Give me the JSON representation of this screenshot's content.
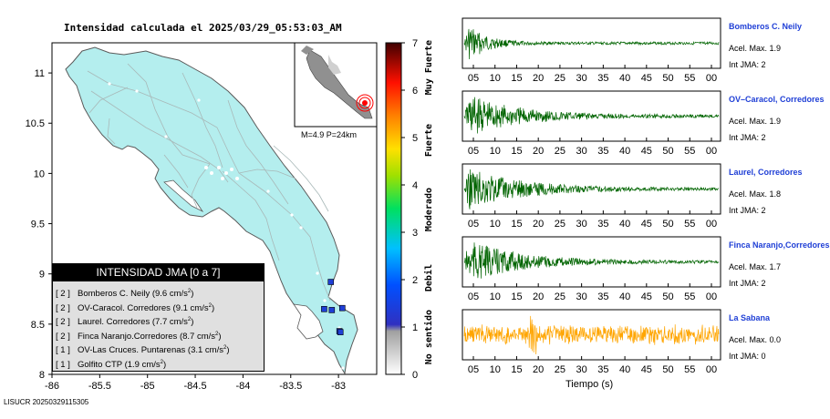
{
  "map": {
    "title": "Intensidad calculada el 2025/03/29_05:53:03_AM",
    "inset_label": "M=4.9 P=24km",
    "footer": "LISUCR 20250329115305",
    "legend_title": "INTENSIDAD JMA [0 a 7]",
    "legend_unit_text": "cm/s",
    "legend_unit_power": "2",
    "stations": [
      {
        "level": "[ 2 ]",
        "name": "Bomberos C. Neily",
        "value": "9.6"
      },
      {
        "level": "[ 2 ]",
        "name": "OV-Caracol. Corredores",
        "value": "9.1"
      },
      {
        "level": "[ 2 ]",
        "name": "Laurel. Corredores",
        "value": "7.7"
      },
      {
        "level": "[ 2 ]",
        "name": "Finca Naranjo.Corredores",
        "value": "8.7"
      },
      {
        "level": "[ 1 ]",
        "name": "OV-Las Cruces. Puntarenas",
        "value": "3.1"
      },
      {
        "level": "[ 1 ]",
        "name": "Golfito CTP",
        "value": "1.9"
      }
    ],
    "x_ticks": [
      "-86",
      "-85.5",
      "-85",
      "-84.5",
      "-84",
      "-83.5",
      "-83"
    ],
    "y_ticks": [
      "11",
      "10.5",
      "10",
      "9.5",
      "9",
      "8.5",
      "8"
    ],
    "colors": {
      "land": "#b4eeee",
      "roads": "#a8b8b8",
      "water": "#ffffff",
      "marker_blue": "#1f3fd6"
    }
  },
  "colorbar": {
    "ticks": [
      "7",
      "6",
      "5",
      "4",
      "3",
      "2",
      "1",
      "0"
    ],
    "labels": [
      "Muy Fuerte",
      "Fuerte",
      "Moderado",
      "Debil",
      "No sentido"
    ]
  },
  "traces": {
    "x_ticks": [
      "05",
      "10",
      "15",
      "20",
      "25",
      "30",
      "35",
      "40",
      "45",
      "50",
      "55",
      "00"
    ],
    "x_label": "Tiempo (s)",
    "acc_prefix": "Acel. Max.",
    "int_prefix": "Int JMA:",
    "stations": [
      {
        "name": "Bomberos C. Neily",
        "acc": "1.9",
        "int": "2",
        "color": "#006400"
      },
      {
        "name": "OV–Caracol, Corredores",
        "acc": "1.9",
        "int": "2",
        "color": "#006400"
      },
      {
        "name": "Laurel, Corredores",
        "acc": "1.8",
        "int": "2",
        "color": "#006400"
      },
      {
        "name": "Finca Naranjo,Corredores",
        "acc": "1.7",
        "int": "2",
        "color": "#006400"
      },
      {
        "name": "La Sabana",
        "acc": "0.0",
        "int": "0",
        "color": "#ffa500"
      }
    ]
  },
  "chart_data": {
    "type": "scatter",
    "title": "Intensidad calculada el 2025/03/29_05:53:03_AM",
    "xlabel": "",
    "ylabel": "",
    "xlim": [
      -86,
      -82.6
    ],
    "ylim": [
      8,
      11.3
    ],
    "epicenter": {
      "x": -82.66,
      "y": 8.52
    },
    "station_points": [
      {
        "x": -83.08,
        "y": 8.92
      },
      {
        "x": -82.96,
        "y": 8.66
      },
      {
        "x": -82.99,
        "y": 8.43
      },
      {
        "x": -82.98,
        "y": 8.42
      },
      {
        "x": -83.07,
        "y": 8.64
      },
      {
        "x": -83.15,
        "y": 8.65
      }
    ]
  }
}
